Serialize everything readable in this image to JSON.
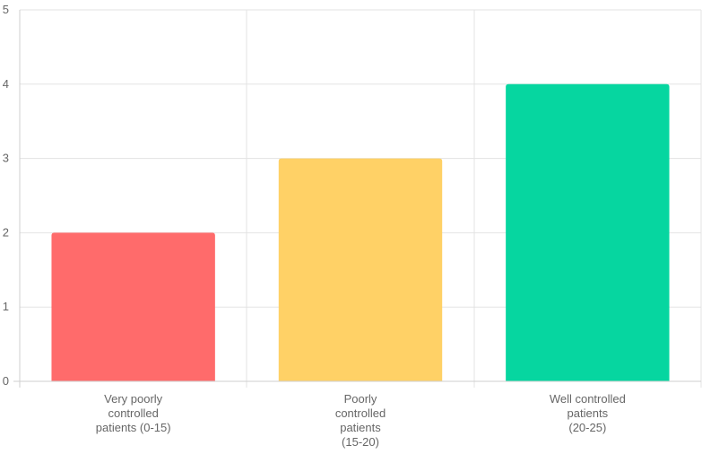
{
  "chart_data": {
    "type": "bar",
    "categories": [
      [
        "Very poorly",
        "controlled",
        "patients (0-15)"
      ],
      [
        "Poorly",
        "controlled",
        "patients",
        "(15-20)"
      ],
      [
        "Well controlled",
        "patients",
        "(20-25)"
      ]
    ],
    "values": [
      2,
      3,
      4
    ],
    "colors": [
      "#ff6b6b",
      "#ffd166",
      "#06d6a0"
    ],
    "ylim": [
      0,
      5
    ],
    "yticks": [
      "0",
      "1",
      "2",
      "3",
      "4",
      "5"
    ],
    "grid": true,
    "title": "",
    "xlabel": "",
    "ylabel": ""
  }
}
